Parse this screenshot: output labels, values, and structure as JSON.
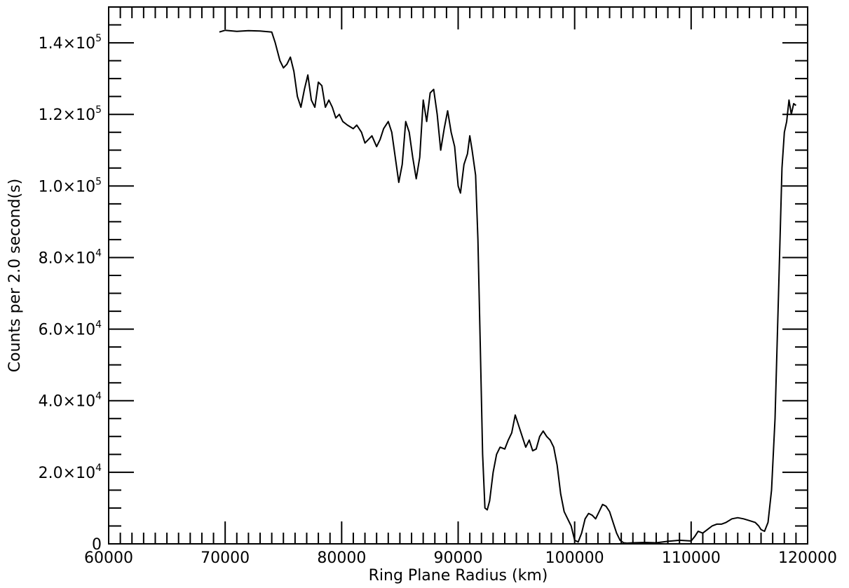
{
  "chart_data": {
    "type": "line",
    "title": "",
    "xlabel": "Ring Plane Radius (km)",
    "ylabel": "Counts per 2.0 second(s)",
    "xlim": [
      60000,
      120000
    ],
    "ylim": [
      0,
      150000
    ],
    "grid": false,
    "x_ticks": [
      {
        "value": 60000,
        "label": "60000"
      },
      {
        "value": 70000,
        "label": "70000"
      },
      {
        "value": 80000,
        "label": "80000"
      },
      {
        "value": 90000,
        "label": "90000"
      },
      {
        "value": 100000,
        "label": "100000"
      },
      {
        "value": 110000,
        "label": "110000"
      },
      {
        "value": 120000,
        "label": "120000"
      }
    ],
    "y_ticks": [
      {
        "value": 0,
        "mantissa": "0",
        "exp": ""
      },
      {
        "value": 20000,
        "mantissa": "2.0×10",
        "exp": "4"
      },
      {
        "value": 40000,
        "mantissa": "4.0×10",
        "exp": "4"
      },
      {
        "value": 60000,
        "mantissa": "6.0×10",
        "exp": "4"
      },
      {
        "value": 80000,
        "mantissa": "8.0×10",
        "exp": "4"
      },
      {
        "value": 100000,
        "mantissa": "1.0×10",
        "exp": "5"
      },
      {
        "value": 120000,
        "mantissa": "1.2×10",
        "exp": "5"
      },
      {
        "value": 140000,
        "mantissa": "1.4×10",
        "exp": "5"
      }
    ],
    "series": [
      {
        "color": "#000000",
        "x": [
          69500,
          70000,
          71000,
          72000,
          73000,
          74000,
          74300,
          74700,
          75000,
          75300,
          75600,
          75900,
          76200,
          76500,
          76800,
          77100,
          77400,
          77700,
          78000,
          78300,
          78600,
          78900,
          79200,
          79500,
          79800,
          80100,
          80500,
          81000,
          81300,
          81700,
          82000,
          82300,
          82600,
          83000,
          83300,
          83600,
          84000,
          84300,
          84600,
          84900,
          85200,
          85500,
          85800,
          86100,
          86400,
          86700,
          87000,
          87300,
          87600,
          87900,
          88200,
          88500,
          88800,
          89100,
          89400,
          89700,
          90000,
          90200,
          90500,
          90800,
          91000,
          91200,
          91500,
          91700,
          91900,
          92100,
          92300,
          92500,
          92700,
          93000,
          93300,
          93600,
          94000,
          94300,
          94600,
          94900,
          95200,
          95500,
          95800,
          96100,
          96400,
          96700,
          97000,
          97300,
          97600,
          97900,
          98200,
          98500,
          98800,
          99100,
          99400,
          99700,
          100000,
          100300,
          100600,
          100900,
          101200,
          101500,
          101800,
          102100,
          102400,
          102700,
          103000,
          103300,
          103600,
          103900,
          104200,
          104500,
          105000,
          106000,
          107000,
          108000,
          109000,
          110000,
          110300,
          110600,
          111000,
          111400,
          111800,
          112200,
          112600,
          113000,
          113500,
          114000,
          114500,
          115000,
          115500,
          115800,
          116000,
          116300,
          116600,
          116900,
          117200,
          117500,
          117800,
          118000,
          118200,
          118400,
          118600,
          118800,
          119000
        ],
        "y": [
          143000,
          143500,
          143200,
          143400,
          143300,
          143000,
          140000,
          135000,
          133000,
          134000,
          136000,
          132000,
          125000,
          122000,
          127000,
          131000,
          124000,
          122000,
          129000,
          128000,
          122000,
          124000,
          122000,
          119000,
          120000,
          118000,
          117000,
          116000,
          117000,
          115000,
          112000,
          113000,
          114000,
          111000,
          113000,
          116000,
          118000,
          115000,
          108000,
          101000,
          106000,
          118000,
          115000,
          108000,
          102000,
          108000,
          124000,
          118000,
          126000,
          127000,
          120000,
          110000,
          116000,
          121000,
          115000,
          111000,
          100000,
          98000,
          106000,
          109000,
          114000,
          110000,
          103000,
          85000,
          55000,
          25000,
          10000,
          9500,
          12000,
          20000,
          25000,
          27000,
          26500,
          29000,
          31000,
          36000,
          33000,
          30000,
          27000,
          29000,
          26000,
          26500,
          30000,
          31500,
          30000,
          29000,
          27000,
          22000,
          14000,
          9000,
          7000,
          5000,
          1000,
          500,
          3000,
          7000,
          8500,
          8000,
          7000,
          9000,
          11000,
          10500,
          9000,
          6000,
          3000,
          1000,
          300,
          200,
          300,
          400,
          300,
          700,
          1000,
          800,
          2000,
          3500,
          3000,
          4000,
          5000,
          5500,
          5500,
          6000,
          7000,
          7300,
          7000,
          6500,
          6000,
          5000,
          4000,
          3500,
          6000,
          15000,
          35000,
          70000,
          105000,
          115000,
          118000,
          124000,
          120000,
          123000,
          122500
        ]
      }
    ]
  }
}
